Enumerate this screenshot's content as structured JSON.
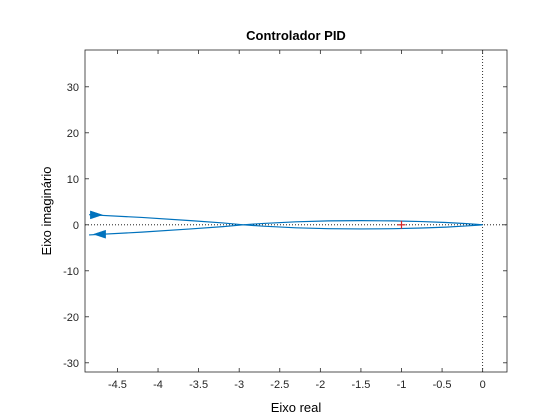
{
  "chart_data": {
    "type": "line",
    "title": "Controlador PID",
    "xlabel": "Eixo real",
    "ylabel": "Eixo imaginário",
    "xlim": [
      -4.9,
      0.3
    ],
    "ylim": [
      -32,
      38
    ],
    "x_ticks": [
      -4.5,
      -4,
      -3.5,
      -3,
      -2.5,
      -2,
      -1.5,
      -1,
      -0.5,
      0
    ],
    "x_tick_labels": [
      "-4.5",
      "-4",
      "-3.5",
      "-3",
      "-2.5",
      "-2",
      "-1.5",
      "-1",
      "-0.5",
      "0"
    ],
    "y_ticks": [
      -30,
      -20,
      -10,
      0,
      10,
      20,
      30
    ],
    "y_tick_labels": [
      "-30",
      "-20",
      "-10",
      "0",
      "10",
      "20",
      "30"
    ],
    "grid": false,
    "reference_lines": {
      "real_axis_zero": true,
      "imag_axis_zero": true
    },
    "critical_point": {
      "x": -1,
      "y": 0,
      "marker": "+",
      "color": "#d62728"
    },
    "series": [
      {
        "color": "#0072bd",
        "x": [
          -4.85,
          -4.2,
          -3.6,
          -3.2,
          -2.95,
          -2.7,
          -2.3,
          -1.9,
          -1.5,
          -1.1,
          -0.75,
          -0.45,
          -0.2,
          -0.05,
          0.0
        ],
        "y": [
          2.2,
          1.6,
          0.9,
          0.4,
          0.0,
          -0.3,
          -0.65,
          -0.85,
          -0.9,
          -0.85,
          -0.7,
          -0.5,
          -0.25,
          -0.07,
          0.0
        ]
      },
      {
        "color": "#0072bd",
        "x": [
          0.0,
          -0.05,
          -0.2,
          -0.45,
          -0.75,
          -1.1,
          -1.5,
          -1.9,
          -2.3,
          -2.7,
          -2.95,
          -3.2,
          -3.6,
          -4.2,
          -4.85
        ],
        "y": [
          0.0,
          0.07,
          0.25,
          0.5,
          0.7,
          0.85,
          0.9,
          0.85,
          0.65,
          0.3,
          0.0,
          -0.4,
          -0.9,
          -1.6,
          -2.2
        ]
      }
    ],
    "arrows": [
      {
        "x": -4.76,
        "y": 2.15,
        "direction": "right",
        "color": "#0072bd"
      },
      {
        "x": -4.72,
        "y": -2.05,
        "direction": "left",
        "color": "#0072bd"
      }
    ]
  }
}
